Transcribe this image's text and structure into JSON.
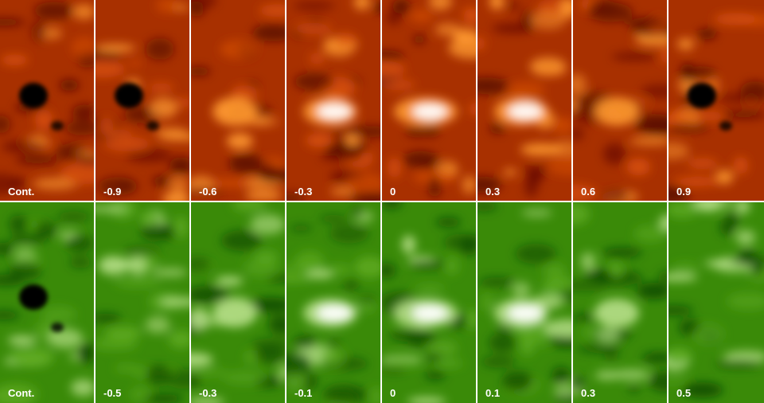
{
  "rows": [
    {
      "panels": [
        "Cont.",
        "-0.9",
        "-0.6",
        "-0.3",
        "0",
        "0.3",
        "0.6",
        "0.9"
      ]
    },
    {
      "panels": [
        "Cont.",
        "-0.5",
        "-0.3",
        "-0.1",
        "0",
        "0.1",
        "0.3",
        "0.5"
      ]
    }
  ]
}
